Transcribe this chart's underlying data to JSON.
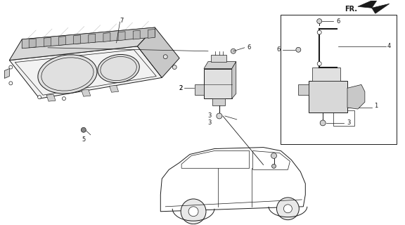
{
  "bg_color": "#ffffff",
  "line_color": "#1a1a1a",
  "fig_width": 5.76,
  "fig_height": 3.2,
  "dpi": 100,
  "meter_color": "#e8e8e8",
  "sensor_color": "#d8d8d8",
  "car_color": "#f0f0f0"
}
